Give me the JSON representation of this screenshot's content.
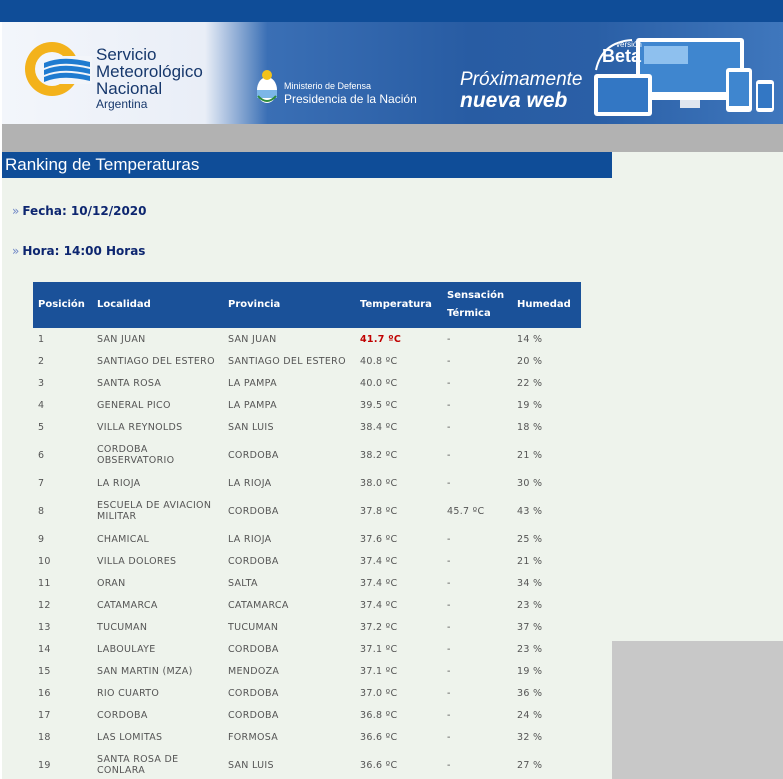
{
  "header": {
    "logo": {
      "line1": "Servicio",
      "line2": "Meteorológico",
      "line3": "Nacional",
      "line4": "Argentina"
    },
    "ministry": {
      "line1": "Ministerio de Defensa",
      "line2": "Presidencia de la Nación"
    },
    "promo": {
      "line1": "Próximamente",
      "line2": "nueva web",
      "beta_small": "versión",
      "beta_big": "Beta"
    }
  },
  "page": {
    "title": "Ranking de Temperaturas",
    "fecha_label": "Fecha: 10/12/2020",
    "hora_label": "Hora: 14:00 Horas"
  },
  "table": {
    "headers": {
      "posicion": "Posición",
      "localidad": "Localidad",
      "provincia": "Provincia",
      "temperatura": "Temperatura",
      "sensacion_l1": "Sensación",
      "sensacion_l2": "Térmica",
      "humedad": "Humedad"
    },
    "rows": [
      {
        "pos": "1",
        "loc1": "SAN JUAN",
        "loc2": "",
        "prov": "SAN JUAN",
        "temp": "41.7 ºC",
        "sens": "-",
        "hum": "14 %"
      },
      {
        "pos": "2",
        "loc1": "SANTIAGO DEL ESTERO",
        "loc2": "",
        "prov": "SANTIAGO DEL ESTERO",
        "temp": "40.8 ºC",
        "sens": "-",
        "hum": "20 %"
      },
      {
        "pos": "3",
        "loc1": "SANTA ROSA",
        "loc2": "",
        "prov": "LA PAMPA",
        "temp": "40.0 ºC",
        "sens": "-",
        "hum": "22 %"
      },
      {
        "pos": "4",
        "loc1": "GENERAL PICO",
        "loc2": "",
        "prov": "LA PAMPA",
        "temp": "39.5 ºC",
        "sens": "-",
        "hum": "19 %"
      },
      {
        "pos": "5",
        "loc1": "VILLA REYNOLDS",
        "loc2": "",
        "prov": "SAN LUIS",
        "temp": "38.4 ºC",
        "sens": "-",
        "hum": "18 %"
      },
      {
        "pos": "6",
        "loc1": "CORDOBA",
        "loc2": "OBSERVATORIO",
        "prov": "CORDOBA",
        "temp": "38.2 ºC",
        "sens": "-",
        "hum": "21 %"
      },
      {
        "pos": "7",
        "loc1": "LA RIOJA",
        "loc2": "",
        "prov": "LA RIOJA",
        "temp": "38.0 ºC",
        "sens": "-",
        "hum": "30 %"
      },
      {
        "pos": "8",
        "loc1": "ESCUELA DE AVIACION",
        "loc2": "MILITAR",
        "prov": "CORDOBA",
        "temp": "37.8 ºC",
        "sens": "45.7 ºC",
        "hum": "43 %"
      },
      {
        "pos": "9",
        "loc1": "CHAMICAL",
        "loc2": "",
        "prov": "LA RIOJA",
        "temp": "37.6 ºC",
        "sens": "-",
        "hum": "25 %"
      },
      {
        "pos": "10",
        "loc1": "VILLA DOLORES",
        "loc2": "",
        "prov": "CORDOBA",
        "temp": "37.4 ºC",
        "sens": "-",
        "hum": "21 %"
      },
      {
        "pos": "11",
        "loc1": "ORAN",
        "loc2": "",
        "prov": "SALTA",
        "temp": "37.4 ºC",
        "sens": "-",
        "hum": "34 %"
      },
      {
        "pos": "12",
        "loc1": "CATAMARCA",
        "loc2": "",
        "prov": "CATAMARCA",
        "temp": "37.4 ºC",
        "sens": "-",
        "hum": "23 %"
      },
      {
        "pos": "13",
        "loc1": "TUCUMAN",
        "loc2": "",
        "prov": "TUCUMAN",
        "temp": "37.2 ºC",
        "sens": "-",
        "hum": "37 %"
      },
      {
        "pos": "14",
        "loc1": "LABOULAYE",
        "loc2": "",
        "prov": "CORDOBA",
        "temp": "37.1 ºC",
        "sens": "-",
        "hum": "23 %"
      },
      {
        "pos": "15",
        "loc1": "SAN MARTIN (MZA)",
        "loc2": "",
        "prov": "MENDOZA",
        "temp": "37.1 ºC",
        "sens": "-",
        "hum": "19 %"
      },
      {
        "pos": "16",
        "loc1": "RIO CUARTO",
        "loc2": "",
        "prov": "CORDOBA",
        "temp": "37.0 ºC",
        "sens": "-",
        "hum": "36 %"
      },
      {
        "pos": "17",
        "loc1": "CORDOBA",
        "loc2": "",
        "prov": "CORDOBA",
        "temp": "36.8 ºC",
        "sens": "-",
        "hum": "24 %"
      },
      {
        "pos": "18",
        "loc1": "LAS LOMITAS",
        "loc2": "",
        "prov": "FORMOSA",
        "temp": "36.6 ºC",
        "sens": "-",
        "hum": "32 %"
      },
      {
        "pos": "19",
        "loc1": "SANTA ROSA DE",
        "loc2": "CONLARA",
        "prov": "SAN LUIS",
        "temp": "36.6 ºC",
        "sens": "-",
        "hum": "27 %"
      }
    ]
  }
}
